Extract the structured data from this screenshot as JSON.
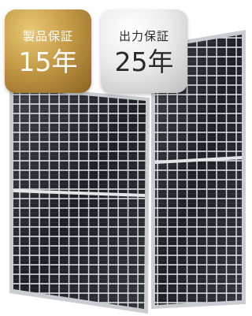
{
  "badges": [
    {
      "label": "製品保証",
      "value": "15年"
    },
    {
      "label": "出力保証",
      "value": "25年"
    }
  ]
}
